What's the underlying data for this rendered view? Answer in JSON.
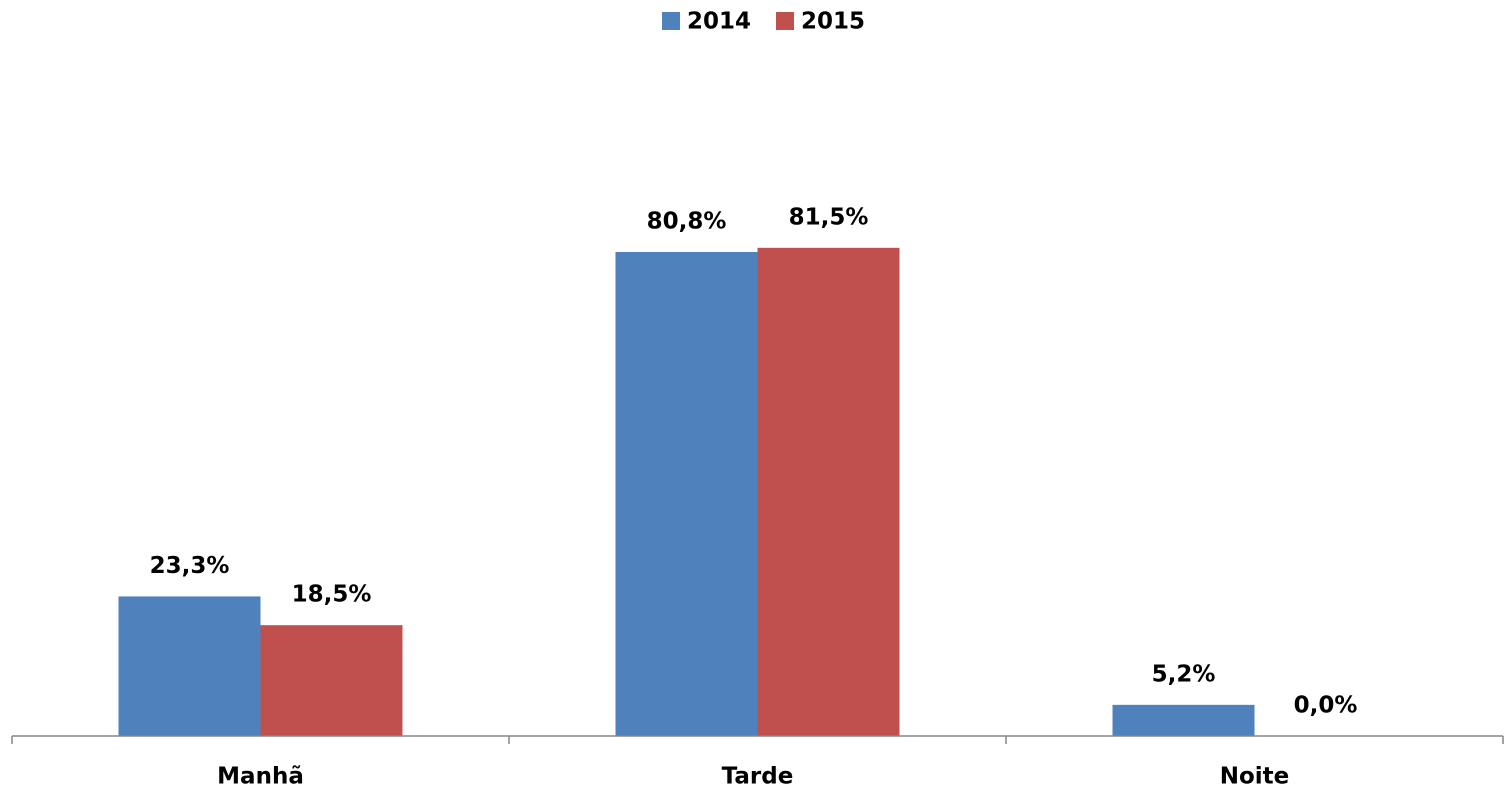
{
  "chart_data": {
    "type": "bar",
    "categories": [
      "Manhã",
      "Tarde",
      "Noite"
    ],
    "series": [
      {
        "name": "2014",
        "color": "#4f81bd",
        "values": [
          23.3,
          80.8,
          5.2
        ],
        "value_labels": [
          "23,3%",
          "80,8%",
          "5,2%"
        ]
      },
      {
        "name": "2015",
        "color": "#c0504d",
        "values": [
          18.5,
          81.5,
          0.0
        ],
        "value_labels": [
          "18,5%",
          "81,5%",
          "0,0%"
        ]
      }
    ],
    "ylim": [
      0,
      100
    ]
  }
}
